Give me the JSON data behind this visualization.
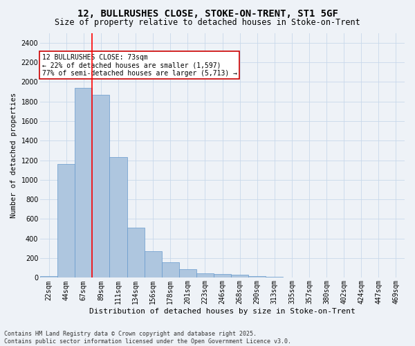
{
  "title": "12, BULLRUSHES CLOSE, STOKE-ON-TRENT, ST1 5GF",
  "subtitle": "Size of property relative to detached houses in Stoke-on-Trent",
  "xlabel": "Distribution of detached houses by size in Stoke-on-Trent",
  "ylabel": "Number of detached properties",
  "bin_labels": [
    "22sqm",
    "44sqm",
    "67sqm",
    "89sqm",
    "111sqm",
    "134sqm",
    "156sqm",
    "178sqm",
    "201sqm",
    "223sqm",
    "246sqm",
    "268sqm",
    "290sqm",
    "313sqm",
    "335sqm",
    "357sqm",
    "380sqm",
    "402sqm",
    "424sqm",
    "447sqm",
    "469sqm"
  ],
  "bar_values": [
    20,
    1160,
    1940,
    1870,
    1230,
    510,
    270,
    155,
    90,
    45,
    38,
    33,
    15,
    8,
    5,
    3,
    2,
    1,
    1,
    0,
    0
  ],
  "bar_color": "#aec6df",
  "bar_edge_color": "#6699cc",
  "grid_color": "#c8d8ea",
  "red_line_bin": 2,
  "annotation_text": "12 BULLRUSHES CLOSE: 73sqm\n← 22% of detached houses are smaller (1,597)\n77% of semi-detached houses are larger (5,713) →",
  "annotation_box_color": "#ffffff",
  "annotation_box_edge": "#cc0000",
  "footer_line1": "Contains HM Land Registry data © Crown copyright and database right 2025.",
  "footer_line2": "Contains public sector information licensed under the Open Government Licence v3.0.",
  "ylim": [
    0,
    2500
  ],
  "yticks": [
    0,
    200,
    400,
    600,
    800,
    1000,
    1200,
    1400,
    1600,
    1800,
    2000,
    2200,
    2400
  ],
  "bg_color": "#eef2f7",
  "title_fontsize": 10,
  "subtitle_fontsize": 8.5,
  "xlabel_fontsize": 8,
  "ylabel_fontsize": 7.5,
  "tick_fontsize": 7,
  "annotation_fontsize": 7,
  "footer_fontsize": 6
}
